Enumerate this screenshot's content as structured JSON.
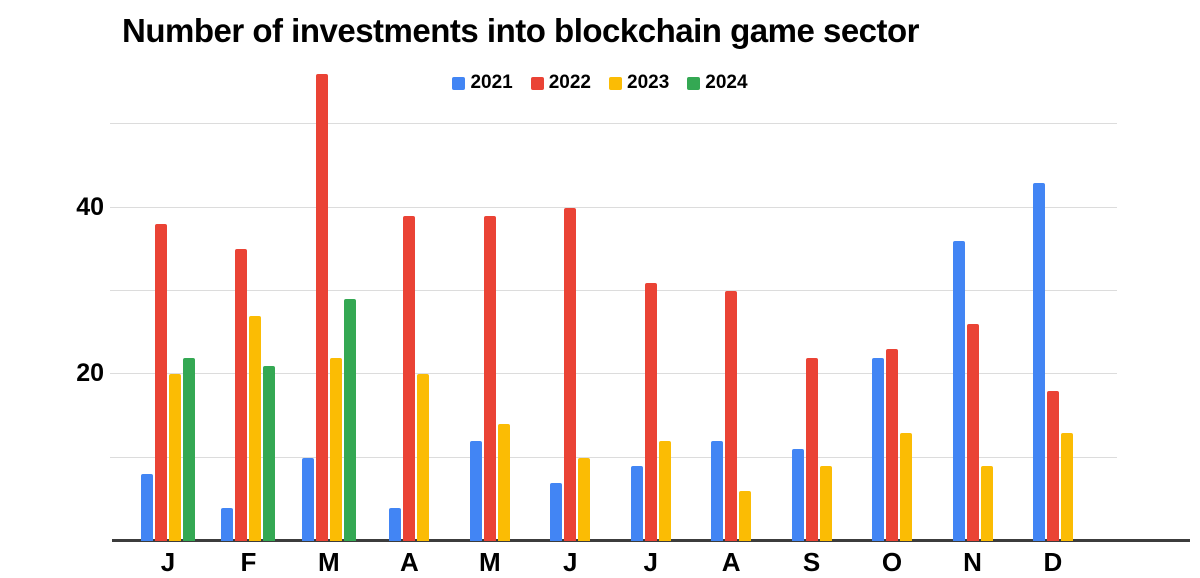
{
  "chart_data": {
    "type": "bar",
    "title": "Number of investments into blockchain game sector",
    "categories": [
      "J",
      "F",
      "M",
      "A",
      "M",
      "J",
      "J",
      "A",
      "S",
      "O",
      "N",
      "D"
    ],
    "series": [
      {
        "name": "2021",
        "color": "#4285F4",
        "values": [
          8,
          4,
          10,
          4,
          12,
          7,
          9,
          12,
          11,
          22,
          36,
          43
        ]
      },
      {
        "name": "2022",
        "color": "#EA4335",
        "values": [
          38,
          35,
          56,
          39,
          39,
          40,
          31,
          30,
          22,
          23,
          26,
          18
        ]
      },
      {
        "name": "2023",
        "color": "#FBBC04",
        "values": [
          20,
          27,
          22,
          20,
          14,
          10,
          12,
          6,
          9,
          13,
          9,
          13
        ]
      },
      {
        "name": "2024",
        "color": "#34A853",
        "values": [
          22,
          21,
          29,
          null,
          null,
          null,
          null,
          null,
          null,
          null,
          null,
          null
        ]
      }
    ],
    "xlabel": "",
    "ylabel": "",
    "ylim": [
      0,
      57
    ],
    "y_tick_labels": [
      20,
      40
    ],
    "gridline_values": [
      10,
      20,
      30,
      40,
      50
    ],
    "grid": "horizontal-only",
    "legend_position": "top-center",
    "background_color": "#ffffff",
    "text_color": "#000000"
  }
}
